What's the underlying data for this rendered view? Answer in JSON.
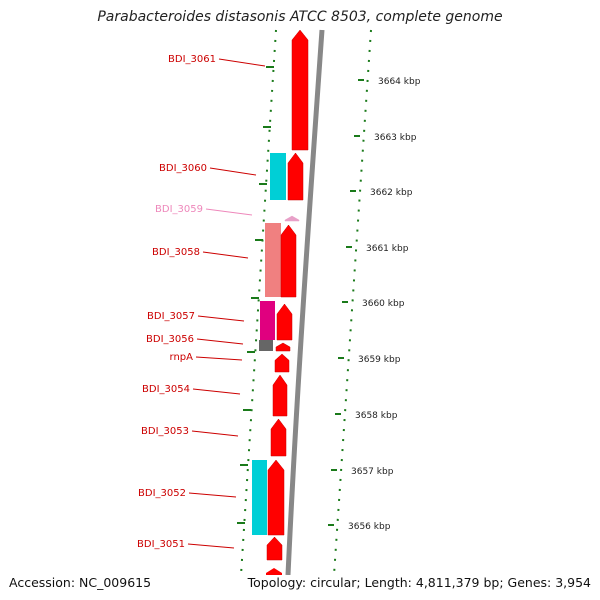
{
  "title": "Parabacteroides distasonis ATCC 8503, complete genome",
  "footer": {
    "accession": "Accession: NC_009615",
    "topology": "Topology: circular; Length: 4,811,379 bp; Genes: 3,954"
  },
  "colors": {
    "forward_gene": "#ff0000",
    "reverse_gene_cyan": "#00cfd6",
    "reverse_gene_salmon": "#f08080",
    "reverse_gene_magenta": "#e0007f",
    "reverse_gene_grey": "#666666",
    "trna": "#e8a0c8",
    "label_red": "#cc0000",
    "label_pink": "#ee88bb",
    "tick_green": "#1a7a1a",
    "backbone": "#888888"
  },
  "scale": {
    "unit": "kbp",
    "labels": [
      "3664 kbp",
      "3663 kbp",
      "3662 kbp",
      "3661 kbp",
      "3660 kbp",
      "3659 kbp",
      "3658 kbp",
      "3657 kbp",
      "3656 kbp"
    ]
  },
  "genes": [
    {
      "name": "BDI_3061",
      "strand": "forward",
      "color": "forward_gene"
    },
    {
      "name": "BDI_3060",
      "strand": "forward",
      "color": "forward_gene"
    },
    {
      "name": "BDI_3059",
      "strand": "forward",
      "color": "trna"
    },
    {
      "name": "BDI_3058",
      "strand": "forward",
      "color": "forward_gene"
    },
    {
      "name": "BDI_3057",
      "strand": "forward",
      "color": "forward_gene"
    },
    {
      "name": "BDI_3056",
      "strand": "forward",
      "color": "forward_gene"
    },
    {
      "name": "rnpA",
      "strand": "forward",
      "color": "forward_gene"
    },
    {
      "name": "BDI_3054",
      "strand": "forward",
      "color": "forward_gene"
    },
    {
      "name": "BDI_3053",
      "strand": "forward",
      "color": "forward_gene"
    },
    {
      "name": "BDI_3052",
      "strand": "forward",
      "color": "forward_gene"
    },
    {
      "name": "BDI_3051",
      "strand": "forward",
      "color": "forward_gene"
    }
  ],
  "reverse_features": [
    {
      "color": "reverse_gene_cyan"
    },
    {
      "color": "reverse_gene_salmon"
    },
    {
      "color": "reverse_gene_magenta"
    },
    {
      "color": "reverse_gene_grey"
    },
    {
      "color": "reverse_gene_cyan"
    }
  ]
}
